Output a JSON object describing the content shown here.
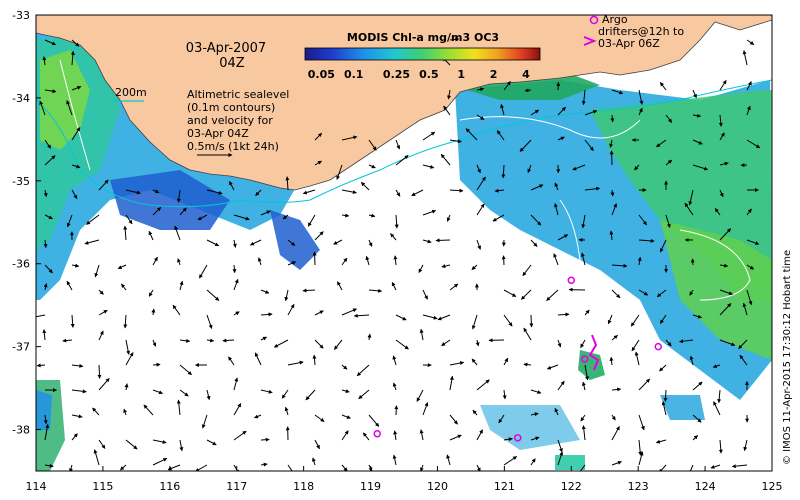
{
  "map": {
    "date": "03-Apr-2007",
    "time": "04Z",
    "colorbar": {
      "title": "MODIS Chl-a mg/m3 OC3",
      "ticks": [
        "0.05",
        "0.1",
        "0.25",
        "0.5",
        "1",
        "2",
        "4"
      ]
    },
    "depth_label": "200m",
    "altimetry_legend": [
      "Altimetric sealevel",
      "(0.1m contours)",
      "and velocity for",
      "03-Apr 04Z",
      "0.5m/s (1kt 24h)"
    ],
    "argo_legend": [
      "Argo",
      "drifters@12h to",
      "03-Apr 06Z"
    ],
    "credit": "© IMOS 11-Apr-2015 17:30:12 Hobart time",
    "x_ticks": [
      "114",
      "115",
      "116",
      "117",
      "118",
      "119",
      "120",
      "121",
      "122",
      "123",
      "124",
      "125"
    ],
    "y_ticks": [
      "-33",
      "-34",
      "-35",
      "-36",
      "-37",
      "-38"
    ],
    "colors": {
      "land": "#f8c8a0",
      "ocean_bg": "#ffffff",
      "argo": "#e000e0",
      "contour_200m": "#00c8d8",
      "sealevel_contour": "#ffffff"
    }
  },
  "chart_data": {
    "type": "map",
    "x_range": [
      114,
      125
    ],
    "y_range": [
      -38.5,
      -33
    ],
    "x_label_units": "longitude",
    "y_label_units": "latitude",
    "colorbar_range": [
      0.05,
      4
    ],
    "argo_floats": [
      {
        "lon": 122.0,
        "lat": -36.2
      },
      {
        "lon": 123.3,
        "lat": -37.0
      },
      {
        "lon": 119.1,
        "lat": -38.05
      },
      {
        "lon": 121.2,
        "lat": -38.1
      },
      {
        "lon": 122.2,
        "lat": -37.15
      }
    ]
  }
}
